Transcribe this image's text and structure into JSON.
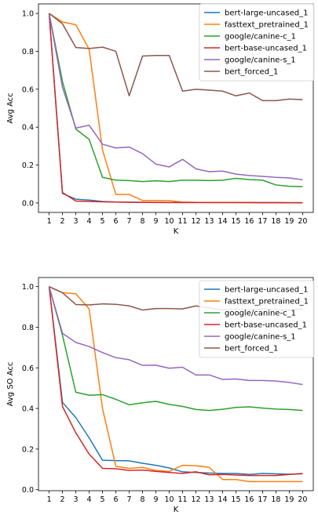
{
  "chart_data": [
    {
      "type": "line",
      "title": "",
      "xlabel": "K",
      "ylabel": "Avg Acc",
      "xlim": [
        0.2,
        20.8
      ],
      "ylim": [
        -0.05,
        1.05
      ],
      "x": [
        1,
        2,
        3,
        4,
        5,
        6,
        7,
        8,
        9,
        10,
        11,
        12,
        13,
        14,
        15,
        16,
        17,
        18,
        19,
        20
      ],
      "x_ticks": [
        "1",
        "2",
        "3",
        "4",
        "5",
        "6",
        "7",
        "8",
        "9",
        "10",
        "11",
        "12",
        "13",
        "14",
        "15",
        "16",
        "17",
        "18",
        "19",
        "20"
      ],
      "y_ticks": [
        "0.0",
        "0.2",
        "0.4",
        "0.6",
        "0.8",
        "1.0"
      ],
      "grid": false,
      "legend_position": "top-right",
      "series": [
        {
          "name": "bert-large-uncased_1",
          "color": "#1f77b4",
          "values": [
            1.0,
            0.05,
            0.02,
            0.015,
            0.008,
            0.005,
            0.004,
            0.003,
            0.003,
            0.002,
            0.002,
            0.002,
            0.002,
            0.002,
            0.002,
            0.002,
            0.002,
            0.002,
            0.001,
            0.001
          ]
        },
        {
          "name": "fasttext_pretrained_1",
          "color": "#ff7f0e",
          "values": [
            1.0,
            0.955,
            0.94,
            0.81,
            0.28,
            0.045,
            0.045,
            0.013,
            0.013,
            0.012,
            0.005,
            0.003,
            0.002,
            0.002,
            0.002,
            0.001,
            0.001,
            0.001,
            0.001,
            0.001
          ]
        },
        {
          "name": "google/canine-c_1",
          "color": "#2ca02c",
          "values": [
            1.0,
            0.64,
            0.39,
            0.335,
            0.135,
            0.12,
            0.118,
            0.113,
            0.117,
            0.113,
            0.12,
            0.12,
            0.118,
            0.12,
            0.13,
            0.123,
            0.12,
            0.095,
            0.088,
            0.086
          ]
        },
        {
          "name": "bert-base-uncased_1",
          "color": "#d62728",
          "values": [
            1.0,
            0.055,
            0.01,
            0.008,
            0.006,
            0.005,
            0.004,
            0.003,
            0.002,
            0.002,
            0.002,
            0.002,
            0.002,
            0.002,
            0.002,
            0.002,
            0.001,
            0.001,
            0.001,
            0.001
          ]
        },
        {
          "name": "google/canine-s_1",
          "color": "#9467bd",
          "values": [
            1.0,
            0.61,
            0.395,
            0.41,
            0.31,
            0.29,
            0.295,
            0.26,
            0.205,
            0.19,
            0.23,
            0.18,
            0.165,
            0.168,
            0.152,
            0.145,
            0.14,
            0.135,
            0.132,
            0.122
          ]
        },
        {
          "name": "bert_forced_1",
          "color": "#8c564b",
          "values": [
            1.0,
            0.945,
            0.82,
            0.815,
            0.822,
            0.8,
            0.565,
            0.775,
            0.778,
            0.778,
            0.59,
            0.6,
            0.595,
            0.59,
            0.565,
            0.58,
            0.54,
            0.54,
            0.548,
            0.545
          ]
        }
      ]
    },
    {
      "type": "line",
      "title": "",
      "xlabel": "K",
      "ylabel": "Avg SO Acc",
      "xlim": [
        0.2,
        20.8
      ],
      "ylim": [
        -0.005,
        1.045
      ],
      "x": [
        1,
        2,
        3,
        4,
        5,
        6,
        7,
        8,
        9,
        10,
        11,
        12,
        13,
        14,
        15,
        16,
        17,
        18,
        19,
        20
      ],
      "x_ticks": [
        "1",
        "2",
        "3",
        "4",
        "5",
        "6",
        "7",
        "8",
        "9",
        "10",
        "11",
        "12",
        "13",
        "14",
        "15",
        "16",
        "17",
        "18",
        "19",
        "20"
      ],
      "y_ticks": [
        "0.0",
        "0.2",
        "0.4",
        "0.6",
        "0.8",
        "1.0"
      ],
      "grid": false,
      "legend_position": "top-right",
      "series": [
        {
          "name": "bert-large-uncased_1",
          "color": "#1f77b4",
          "values": [
            1.0,
            0.43,
            0.355,
            0.255,
            0.145,
            0.143,
            0.142,
            0.13,
            0.12,
            0.107,
            0.088,
            0.085,
            0.082,
            0.08,
            0.08,
            0.075,
            0.08,
            0.078,
            0.076,
            0.078
          ]
        },
        {
          "name": "fasttext_pretrained_1",
          "color": "#ff7f0e",
          "values": [
            1.0,
            0.97,
            0.965,
            0.89,
            0.4,
            0.115,
            0.105,
            0.11,
            0.095,
            0.09,
            0.12,
            0.118,
            0.11,
            0.05,
            0.05,
            0.04,
            0.04,
            0.04,
            0.04,
            0.04
          ]
        },
        {
          "name": "google/canine-c_1",
          "color": "#2ca02c",
          "values": [
            1.0,
            0.76,
            0.48,
            0.465,
            0.468,
            0.445,
            0.418,
            0.428,
            0.435,
            0.42,
            0.41,
            0.395,
            0.39,
            0.396,
            0.405,
            0.408,
            0.402,
            0.397,
            0.395,
            0.39
          ]
        },
        {
          "name": "bert-base-uncased_1",
          "color": "#d62728",
          "values": [
            1.0,
            0.41,
            0.28,
            0.175,
            0.105,
            0.103,
            0.095,
            0.097,
            0.09,
            0.085,
            0.08,
            0.088,
            0.073,
            0.075,
            0.072,
            0.07,
            0.07,
            0.07,
            0.075,
            0.08
          ]
        },
        {
          "name": "google/canine-s_1",
          "color": "#9467bd",
          "values": [
            1.0,
            0.77,
            0.725,
            0.705,
            0.675,
            0.65,
            0.64,
            0.612,
            0.613,
            0.598,
            0.603,
            0.565,
            0.565,
            0.543,
            0.545,
            0.538,
            0.538,
            0.535,
            0.528,
            0.518
          ]
        },
        {
          "name": "bert_forced_1",
          "color": "#8c564b",
          "values": [
            1.0,
            0.97,
            0.912,
            0.91,
            0.915,
            0.913,
            0.905,
            0.885,
            0.892,
            0.892,
            0.89,
            0.905,
            0.895,
            0.885,
            0.89,
            0.885,
            0.89,
            0.885,
            0.885,
            0.89
          ]
        }
      ]
    }
  ]
}
